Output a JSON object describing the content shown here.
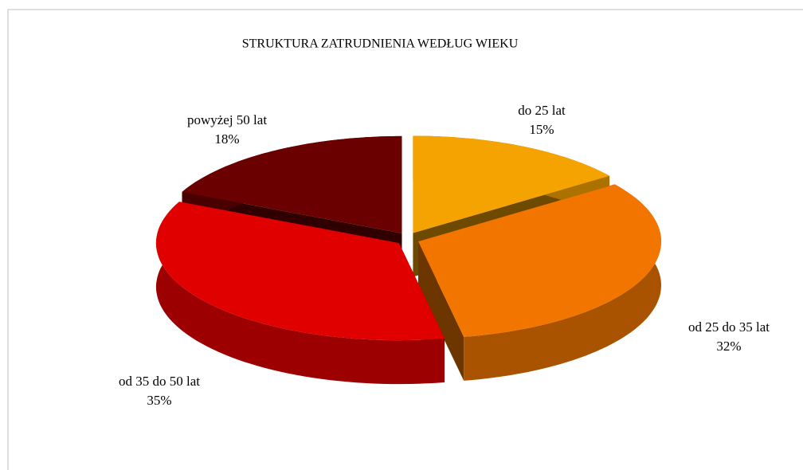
{
  "chart_data": {
    "type": "pie",
    "title": "STRUKTURA  ZATRUDNIENIA  WEDŁUG WIEKU",
    "categories": [
      "do 25 lat",
      "od 25 do 35 lat",
      "od 35 do 50 lat",
      "powyżej 50 lat"
    ],
    "values": [
      15,
      32,
      35,
      18
    ],
    "value_labels": [
      "15%",
      "32%",
      "35%",
      "18%"
    ],
    "colors": [
      "#f5a300",
      "#f27500",
      "#e00000",
      "#6a0000"
    ]
  }
}
